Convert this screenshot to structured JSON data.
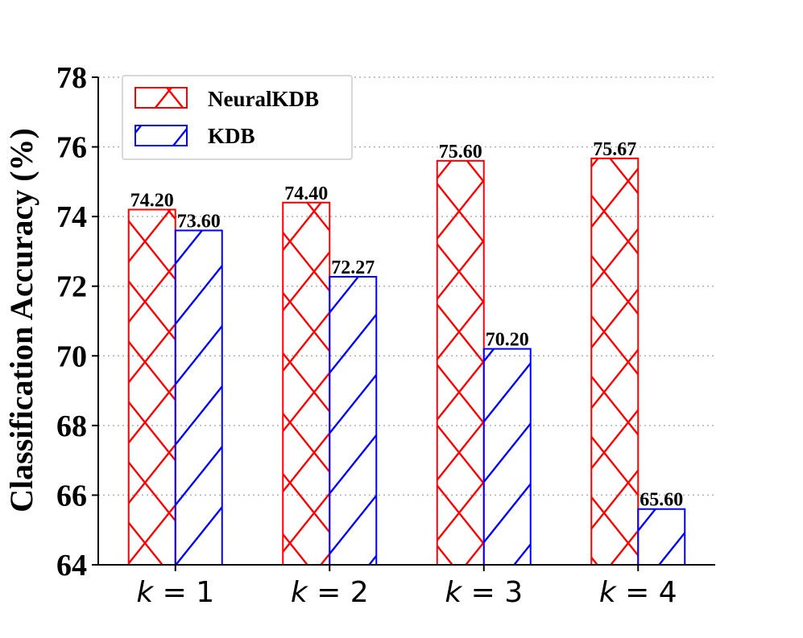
{
  "chart_data": {
    "type": "bar",
    "categories": [
      "k = 1",
      "k = 2",
      "k = 3",
      "k = 4"
    ],
    "series": [
      {
        "name": "NeuralKDB",
        "values": [
          74.2,
          74.4,
          75.6,
          75.67
        ],
        "labels": [
          "74.20",
          "74.40",
          "75.60",
          "75.67"
        ],
        "color": "#ff0000",
        "hatch": "x"
      },
      {
        "name": "KDB",
        "values": [
          73.6,
          72.27,
          70.2,
          65.6
        ],
        "labels": [
          "73.60",
          "72.27",
          "70.20",
          "65.60"
        ],
        "color": "#0000ff",
        "hatch": "/"
      }
    ],
    "ylabel": "Classification Accuracy (%)",
    "xlabel": "",
    "ylim": [
      64,
      78
    ],
    "yticks": [
      "64",
      "66",
      "68",
      "70",
      "72",
      "74",
      "76",
      "78"
    ],
    "grid": "horizontal dotted",
    "legend": "top-left"
  }
}
